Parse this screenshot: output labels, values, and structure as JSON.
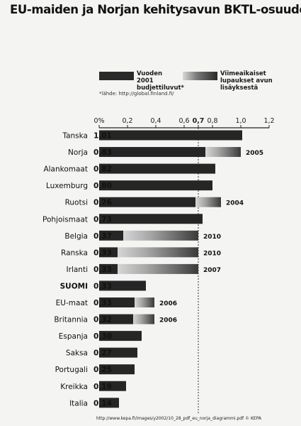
{
  "chart_data": {
    "type": "bar",
    "title": "EU-maiden ja Norjan kehitysavun BKTL-osuudet",
    "categories": [
      "Tanska",
      "Norja",
      "Alankomaat",
      "Luxemburg",
      "Ruotsi",
      "Pohjoismaat",
      "Belgia",
      "Ranska",
      "Irlanti",
      "SUOMI",
      "EU-maat",
      "Britannia",
      "Espanja",
      "Saksa",
      "Portugali",
      "Kreikka",
      "Italia"
    ],
    "value_labels": [
      "1,01",
      "0,83",
      "0,82",
      "0,80",
      "0,76",
      "0,73",
      "0,37",
      "0,33",
      "0,33",
      "0,33",
      "0,33",
      "0,32",
      "0,30",
      "0,27",
      "0,25",
      "0,19",
      "0,14"
    ],
    "series": [
      {
        "name": "Vuoden 2001 budjettiluvut*",
        "color": "#262626",
        "values": [
          1.01,
          0.83,
          0.82,
          0.8,
          0.76,
          0.73,
          0.37,
          0.33,
          0.33,
          0.33,
          0.33,
          0.32,
          0.3,
          0.27,
          0.25,
          0.19,
          0.14
        ]
      },
      {
        "name": "Viimeaikaiset lupaukset avun lisäyksestä",
        "color": "#9a9a9a",
        "targets": [
          null,
          1.0,
          null,
          null,
          0.86,
          null,
          0.7,
          0.7,
          0.7,
          null,
          0.39,
          0.39,
          null,
          null,
          null,
          null,
          null
        ],
        "target_years": [
          "",
          "2005",
          "",
          "",
          "2004",
          "",
          "2010",
          "2010",
          "2007",
          "",
          "2006",
          "2006",
          "",
          "",
          "",
          "",
          ""
        ]
      }
    ],
    "x_ticks": [
      "0%",
      "0,2",
      "0,4",
      "0,6",
      "0,7",
      "0,8",
      "1,0",
      "1,2"
    ],
    "x_tick_values": [
      0,
      0.2,
      0.4,
      0.6,
      0.7,
      0.8,
      1.0,
      1.2
    ],
    "xlim": [
      0,
      1.2
    ],
    "reference_line": 0.7,
    "bold_category": "SUOMI"
  },
  "legend": {
    "item1": "Vuoden 2001 budjettiluvut*",
    "item2": "Viimeaikaiset lupaukset avun lisäyksestä"
  },
  "footnote": "*lähde: http://global.finland.fi/",
  "source": "http://www.kepa.fi/images/y2002/10_28_pdf_eu_norja_diagrammi.pdf  © KEPA"
}
